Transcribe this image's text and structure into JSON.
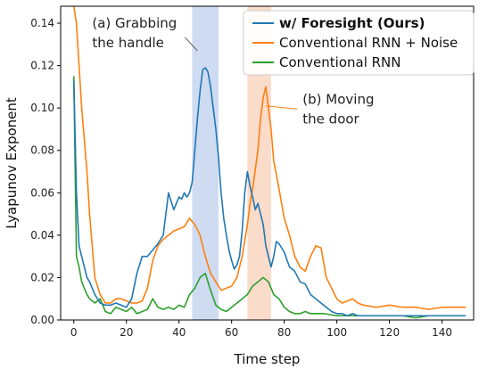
{
  "chart_data": {
    "type": "line",
    "title": "",
    "xlabel": "Time step",
    "ylabel": "Lyapunov Exponent",
    "xlim": [
      -5,
      152
    ],
    "ylim": [
      0,
      0.148
    ],
    "xticks": [
      0,
      20,
      40,
      60,
      80,
      100,
      120,
      140
    ],
    "xtick_labels": [
      "0",
      "20",
      "40",
      "60",
      "80",
      "100",
      "120",
      "140"
    ],
    "yticks": [
      0.0,
      0.02,
      0.04,
      0.06,
      0.08,
      0.1,
      0.12,
      0.14
    ],
    "ytick_labels": [
      "0.00",
      "0.02",
      "0.04",
      "0.06",
      "0.08",
      "0.10",
      "0.12",
      "0.14"
    ],
    "grid": false,
    "legend_position": "top-right",
    "shaded_regions": [
      {
        "x0": 45,
        "x1": 55,
        "color": "#aec3e8"
      },
      {
        "x0": 66,
        "x1": 75,
        "color": "#f9c3a6"
      }
    ],
    "annotations": [
      {
        "lines": [
          "(a) Grabbing",
          "the handle"
        ],
        "x": 7,
        "y": 0.138,
        "arrow_to": [
          47,
          0.127
        ]
      },
      {
        "lines": [
          "(b) Moving",
          "the door"
        ],
        "x": 87,
        "y": 0.102,
        "arrow_to": [
          73,
          0.101
        ]
      }
    ],
    "series": [
      {
        "name": "w/ Foresight (Ours)",
        "color": "#1f77b4",
        "bold": true,
        "x": [
          0,
          1,
          2,
          3,
          4,
          5,
          6,
          7,
          8,
          9,
          10,
          12,
          14,
          16,
          18,
          20,
          22,
          24,
          26,
          28,
          30,
          32,
          34,
          35,
          36,
          38,
          40,
          41,
          42,
          43,
          44,
          45,
          46,
          47,
          48,
          49,
          50,
          51,
          52,
          53,
          54,
          55,
          56,
          57,
          58,
          59,
          60,
          61,
          62,
          63,
          64,
          65,
          66,
          67,
          68,
          69,
          70,
          71,
          72,
          73,
          74,
          75,
          76,
          77,
          78,
          79,
          80,
          82,
          84,
          86,
          88,
          90,
          92,
          94,
          96,
          98,
          100,
          102,
          104,
          106,
          108,
          110,
          115,
          120,
          125,
          130,
          135,
          140,
          145,
          149
        ],
        "y": [
          0.113,
          0.06,
          0.035,
          0.03,
          0.025,
          0.02,
          0.018,
          0.015,
          0.012,
          0.01,
          0.008,
          0.007,
          0.007,
          0.008,
          0.007,
          0.006,
          0.01,
          0.022,
          0.03,
          0.03,
          0.033,
          0.036,
          0.04,
          0.05,
          0.06,
          0.052,
          0.058,
          0.057,
          0.06,
          0.058,
          0.06,
          0.065,
          0.08,
          0.095,
          0.108,
          0.118,
          0.119,
          0.117,
          0.11,
          0.1,
          0.09,
          0.077,
          0.06,
          0.048,
          0.04,
          0.033,
          0.028,
          0.024,
          0.026,
          0.03,
          0.042,
          0.06,
          0.07,
          0.063,
          0.058,
          0.052,
          0.055,
          0.05,
          0.045,
          0.035,
          0.03,
          0.025,
          0.03,
          0.037,
          0.036,
          0.034,
          0.032,
          0.025,
          0.023,
          0.018,
          0.017,
          0.012,
          0.01,
          0.008,
          0.006,
          0.004,
          0.003,
          0.003,
          0.002,
          0.003,
          0.002,
          0.002,
          0.002,
          0.002,
          0.002,
          0.002,
          0.002,
          0.002,
          0.002,
          0.002
        ]
      },
      {
        "name": "Conventional RNN + Noise",
        "color": "#ff7f0e",
        "bold": false,
        "x": [
          0,
          1,
          2,
          3,
          4,
          5,
          6,
          8,
          10,
          12,
          14,
          16,
          18,
          20,
          22,
          24,
          26,
          28,
          30,
          32,
          34,
          36,
          38,
          40,
          42,
          44,
          46,
          48,
          50,
          52,
          54,
          56,
          58,
          60,
          62,
          64,
          66,
          67,
          68,
          70,
          71,
          72,
          73,
          74,
          75,
          76,
          78,
          80,
          82,
          84,
          86,
          88,
          90,
          92,
          94,
          96,
          98,
          100,
          102,
          104,
          106,
          108,
          110,
          115,
          120,
          125,
          130,
          135,
          140,
          145,
          149
        ],
        "y": [
          0.148,
          0.14,
          0.12,
          0.1,
          0.085,
          0.07,
          0.05,
          0.02,
          0.012,
          0.008,
          0.008,
          0.01,
          0.01,
          0.009,
          0.008,
          0.008,
          0.009,
          0.015,
          0.028,
          0.035,
          0.038,
          0.04,
          0.042,
          0.043,
          0.044,
          0.048,
          0.045,
          0.04,
          0.03,
          0.022,
          0.018,
          0.014,
          0.015,
          0.016,
          0.02,
          0.03,
          0.045,
          0.055,
          0.062,
          0.08,
          0.095,
          0.105,
          0.11,
          0.1,
          0.09,
          0.075,
          0.062,
          0.048,
          0.04,
          0.03,
          0.025,
          0.023,
          0.03,
          0.035,
          0.034,
          0.02,
          0.015,
          0.01,
          0.008,
          0.009,
          0.01,
          0.008,
          0.007,
          0.006,
          0.007,
          0.006,
          0.006,
          0.005,
          0.006,
          0.006,
          0.006
        ]
      },
      {
        "name": "Conventional RNN",
        "color": "#2ca02c",
        "bold": false,
        "x": [
          0,
          1,
          2,
          3,
          4,
          5,
          6,
          8,
          10,
          12,
          14,
          16,
          18,
          20,
          22,
          24,
          26,
          28,
          30,
          32,
          34,
          36,
          38,
          40,
          42,
          44,
          46,
          48,
          50,
          52,
          54,
          56,
          58,
          60,
          62,
          64,
          66,
          68,
          70,
          72,
          74,
          76,
          78,
          80,
          82,
          84,
          86,
          88,
          90,
          95,
          100,
          105,
          110,
          115,
          120,
          125,
          130,
          135,
          140,
          145,
          149
        ],
        "y": [
          0.115,
          0.03,
          0.025,
          0.018,
          0.015,
          0.012,
          0.01,
          0.008,
          0.01,
          0.004,
          0.003,
          0.006,
          0.005,
          0.004,
          0.006,
          0.003,
          0.004,
          0.005,
          0.01,
          0.006,
          0.005,
          0.006,
          0.005,
          0.007,
          0.006,
          0.012,
          0.015,
          0.02,
          0.022,
          0.014,
          0.007,
          0.005,
          0.004,
          0.006,
          0.008,
          0.01,
          0.012,
          0.016,
          0.018,
          0.02,
          0.018,
          0.012,
          0.01,
          0.006,
          0.004,
          0.003,
          0.003,
          0.004,
          0.003,
          0.003,
          0.002,
          0.002,
          0.002,
          0.002,
          0.002,
          0.002,
          0.001,
          0.002,
          0.002,
          0.002,
          0.002
        ]
      }
    ]
  }
}
